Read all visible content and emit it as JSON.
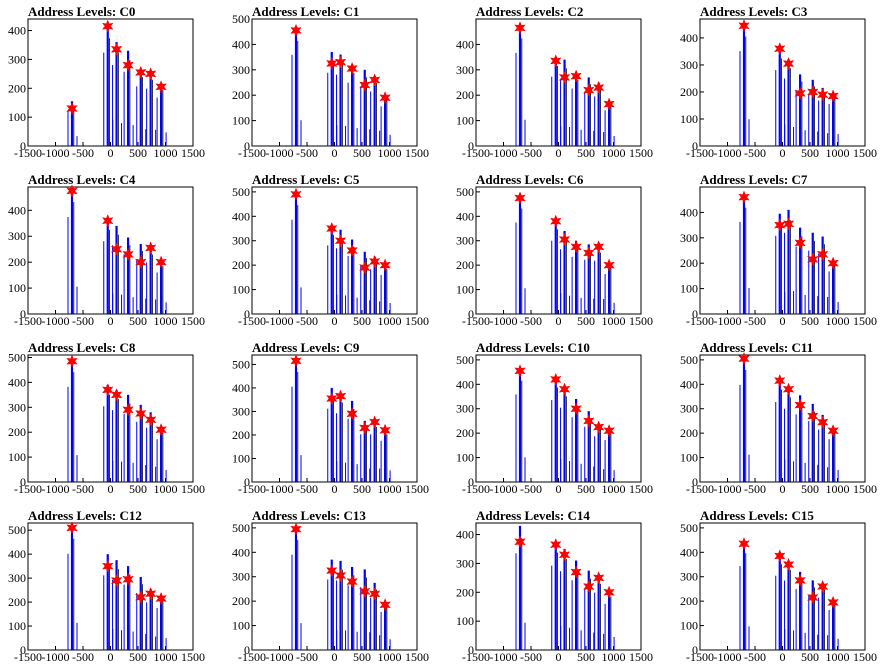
{
  "figure": {
    "x_ticks": [
      -1500,
      -1000,
      -500,
      0,
      500,
      1000,
      1500
    ],
    "x_range": [
      -1500,
      1500
    ],
    "colors": {
      "hist": "#0000ff",
      "peak": "#ff0000",
      "axis": "#000000"
    },
    "marker": "star"
  },
  "chart_data": [
    {
      "type": "bar",
      "title": "Address Levels: C0",
      "ylim": [
        0,
        440
      ],
      "y_ticks": [
        0,
        100,
        200,
        300,
        400
      ],
      "peaks": [
        [
          -700,
          130
        ],
        [
          -50,
          415
        ],
        [
          110,
          335
        ],
        [
          320,
          280
        ],
        [
          550,
          255
        ],
        [
          730,
          250
        ],
        [
          920,
          205
        ]
      ],
      "bars": [
        [
          -700,
          155
        ],
        [
          -50,
          415
        ],
        [
          110,
          360
        ],
        [
          320,
          330
        ],
        [
          550,
          265
        ],
        [
          730,
          255
        ],
        [
          920,
          215
        ]
      ]
    },
    {
      "type": "bar",
      "title": "Address Levels: C1",
      "ylim": [
        0,
        500
      ],
      "y_ticks": [
        0,
        100,
        200,
        300,
        400,
        500
      ],
      "peaks": [
        [
          -700,
          455
        ],
        [
          -50,
          325
        ],
        [
          110,
          330
        ],
        [
          320,
          305
        ],
        [
          550,
          240
        ],
        [
          730,
          260
        ],
        [
          920,
          190
        ]
      ],
      "bars": [
        [
          -700,
          460
        ],
        [
          -50,
          370
        ],
        [
          110,
          360
        ],
        [
          320,
          320
        ],
        [
          550,
          300
        ],
        [
          730,
          275
        ],
        [
          920,
          200
        ]
      ]
    },
    {
      "type": "bar",
      "title": "Address Levels: C2",
      "ylim": [
        0,
        500
      ],
      "y_ticks": [
        0,
        100,
        200,
        300,
        400
      ],
      "peaks": [
        [
          -700,
          465
        ],
        [
          -50,
          335
        ],
        [
          110,
          270
        ],
        [
          320,
          275
        ],
        [
          550,
          220
        ],
        [
          730,
          230
        ],
        [
          920,
          165
        ]
      ],
      "bars": [
        [
          -700,
          470
        ],
        [
          -50,
          350
        ],
        [
          110,
          340
        ],
        [
          320,
          290
        ],
        [
          550,
          270
        ],
        [
          730,
          250
        ],
        [
          920,
          180
        ]
      ]
    },
    {
      "type": "bar",
      "title": "Address Levels: C3",
      "ylim": [
        0,
        470
      ],
      "y_ticks": [
        0,
        100,
        200,
        300,
        400
      ],
      "peaks": [
        [
          -700,
          445
        ],
        [
          -50,
          360
        ],
        [
          110,
          305
        ],
        [
          320,
          195
        ],
        [
          550,
          200
        ],
        [
          730,
          190
        ],
        [
          920,
          185
        ]
      ],
      "bars": [
        [
          -700,
          450
        ],
        [
          -50,
          360
        ],
        [
          110,
          320
        ],
        [
          320,
          265
        ],
        [
          550,
          245
        ],
        [
          730,
          215
        ],
        [
          920,
          200
        ]
      ]
    },
    {
      "type": "bar",
      "title": "Address Levels: C4",
      "ylim": [
        0,
        490
      ],
      "y_ticks": [
        0,
        100,
        200,
        300,
        400
      ],
      "peaks": [
        [
          -700,
          475
        ],
        [
          -50,
          360
        ],
        [
          110,
          250
        ],
        [
          320,
          230
        ],
        [
          550,
          200
        ],
        [
          730,
          255
        ],
        [
          920,
          200
        ]
      ],
      "bars": [
        [
          -700,
          480
        ],
        [
          -50,
          360
        ],
        [
          110,
          340
        ],
        [
          320,
          295
        ],
        [
          550,
          270
        ],
        [
          730,
          255
        ],
        [
          920,
          205
        ]
      ]
    },
    {
      "type": "bar",
      "title": "Address Levels: C5",
      "ylim": [
        0,
        520
      ],
      "y_ticks": [
        0,
        100,
        200,
        300,
        400,
        500
      ],
      "peaks": [
        [
          -700,
          490
        ],
        [
          -50,
          350
        ],
        [
          110,
          300
        ],
        [
          320,
          260
        ],
        [
          550,
          190
        ],
        [
          730,
          215
        ],
        [
          920,
          200
        ]
      ],
      "bars": [
        [
          -700,
          495
        ],
        [
          -50,
          360
        ],
        [
          110,
          345
        ],
        [
          320,
          305
        ],
        [
          550,
          255
        ],
        [
          730,
          235
        ],
        [
          920,
          205
        ]
      ]
    },
    {
      "type": "bar",
      "title": "Address Levels: C6",
      "ylim": [
        0,
        520
      ],
      "y_ticks": [
        0,
        100,
        200,
        300,
        400,
        500
      ],
      "peaks": [
        [
          -700,
          475
        ],
        [
          -50,
          380
        ],
        [
          110,
          305
        ],
        [
          320,
          275
        ],
        [
          550,
          250
        ],
        [
          730,
          275
        ],
        [
          920,
          200
        ]
      ],
      "bars": [
        [
          -700,
          480
        ],
        [
          -50,
          385
        ],
        [
          110,
          340
        ],
        [
          320,
          300
        ],
        [
          550,
          285
        ],
        [
          730,
          280
        ],
        [
          920,
          210
        ]
      ]
    },
    {
      "type": "bar",
      "title": "Address Levels: C7",
      "ylim": [
        0,
        500
      ],
      "y_ticks": [
        0,
        100,
        200,
        300,
        400
      ],
      "peaks": [
        [
          -700,
          460
        ],
        [
          -50,
          350
        ],
        [
          110,
          355
        ],
        [
          320,
          280
        ],
        [
          550,
          215
        ],
        [
          730,
          235
        ],
        [
          920,
          200
        ]
      ],
      "bars": [
        [
          -700,
          465
        ],
        [
          -50,
          395
        ],
        [
          110,
          410
        ],
        [
          320,
          340
        ],
        [
          550,
          320
        ],
        [
          730,
          305
        ],
        [
          920,
          215
        ]
      ]
    },
    {
      "type": "bar",
      "title": "Address Levels: C8",
      "ylim": [
        0,
        510
      ],
      "y_ticks": [
        0,
        100,
        200,
        300,
        400,
        500
      ],
      "peaks": [
        [
          -700,
          485
        ],
        [
          -50,
          370
        ],
        [
          110,
          350
        ],
        [
          320,
          290
        ],
        [
          550,
          275
        ],
        [
          730,
          250
        ],
        [
          920,
          210
        ]
      ],
      "bars": [
        [
          -700,
          490
        ],
        [
          -50,
          390
        ],
        [
          110,
          370
        ],
        [
          320,
          350
        ],
        [
          550,
          310
        ],
        [
          730,
          280
        ],
        [
          920,
          220
        ]
      ]
    },
    {
      "type": "bar",
      "title": "Address Levels: C9",
      "ylim": [
        0,
        540
      ],
      "y_ticks": [
        0,
        100,
        200,
        300,
        400,
        500
      ],
      "peaks": [
        [
          -700,
          515
        ],
        [
          -50,
          355
        ],
        [
          110,
          365
        ],
        [
          320,
          290
        ],
        [
          550,
          230
        ],
        [
          730,
          255
        ],
        [
          920,
          220
        ]
      ],
      "bars": [
        [
          -700,
          520
        ],
        [
          -50,
          400
        ],
        [
          110,
          375
        ],
        [
          320,
          345
        ],
        [
          550,
          260
        ],
        [
          730,
          260
        ],
        [
          920,
          225
        ]
      ]
    },
    {
      "type": "bar",
      "title": "Address Levels: C10",
      "ylim": [
        0,
        520
      ],
      "y_ticks": [
        0,
        100,
        200,
        300,
        400,
        500
      ],
      "peaks": [
        [
          -700,
          455
        ],
        [
          -50,
          420
        ],
        [
          110,
          380
        ],
        [
          320,
          300
        ],
        [
          550,
          250
        ],
        [
          730,
          225
        ],
        [
          920,
          210
        ]
      ],
      "bars": [
        [
          -700,
          460
        ],
        [
          -50,
          430
        ],
        [
          110,
          390
        ],
        [
          320,
          340
        ],
        [
          550,
          290
        ],
        [
          730,
          240
        ],
        [
          920,
          220
        ]
      ]
    },
    {
      "type": "bar",
      "title": "Address Levels: C11",
      "ylim": [
        0,
        520
      ],
      "y_ticks": [
        0,
        100,
        200,
        300,
        400,
        500
      ],
      "peaks": [
        [
          -700,
          505
        ],
        [
          -50,
          415
        ],
        [
          110,
          380
        ],
        [
          320,
          315
        ],
        [
          550,
          270
        ],
        [
          730,
          245
        ],
        [
          920,
          210
        ]
      ],
      "bars": [
        [
          -700,
          510
        ],
        [
          -50,
          420
        ],
        [
          110,
          385
        ],
        [
          320,
          355
        ],
        [
          550,
          320
        ],
        [
          730,
          275
        ],
        [
          920,
          225
        ]
      ]
    },
    {
      "type": "bar",
      "title": "Address Levels: C12",
      "ylim": [
        0,
        530
      ],
      "y_ticks": [
        0,
        100,
        200,
        300,
        400,
        500
      ],
      "peaks": [
        [
          -700,
          510
        ],
        [
          -50,
          350
        ],
        [
          110,
          290
        ],
        [
          320,
          295
        ],
        [
          550,
          220
        ],
        [
          730,
          235
        ],
        [
          920,
          215
        ]
      ],
      "bars": [
        [
          -700,
          515
        ],
        [
          -50,
          400
        ],
        [
          110,
          375
        ],
        [
          320,
          350
        ],
        [
          550,
          305
        ],
        [
          730,
          255
        ],
        [
          920,
          225
        ]
      ]
    },
    {
      "type": "bar",
      "title": "Address Levels: C13",
      "ylim": [
        0,
        520
      ],
      "y_ticks": [
        0,
        100,
        200,
        300,
        400,
        500
      ],
      "peaks": [
        [
          -700,
          495
        ],
        [
          -50,
          325
        ],
        [
          110,
          305
        ],
        [
          320,
          280
        ],
        [
          550,
          240
        ],
        [
          730,
          230
        ],
        [
          920,
          185
        ]
      ],
      "bars": [
        [
          -700,
          500
        ],
        [
          -50,
          370
        ],
        [
          110,
          365
        ],
        [
          320,
          340
        ],
        [
          550,
          330
        ],
        [
          730,
          275
        ],
        [
          920,
          200
        ]
      ]
    },
    {
      "type": "bar",
      "title": "Address Levels: C14",
      "ylim": [
        0,
        440
      ],
      "y_ticks": [
        0,
        100,
        200,
        300,
        400
      ],
      "peaks": [
        [
          -700,
          375
        ],
        [
          -50,
          365
        ],
        [
          110,
          330
        ],
        [
          320,
          270
        ],
        [
          550,
          220
        ],
        [
          730,
          250
        ],
        [
          920,
          200
        ]
      ],
      "bars": [
        [
          -700,
          430
        ],
        [
          -50,
          375
        ],
        [
          110,
          350
        ],
        [
          320,
          310
        ],
        [
          550,
          275
        ],
        [
          730,
          255
        ],
        [
          920,
          205
        ]
      ]
    },
    {
      "type": "bar",
      "title": "Address Levels: C15",
      "ylim": [
        0,
        520
      ],
      "y_ticks": [
        0,
        100,
        200,
        300,
        400,
        500
      ],
      "peaks": [
        [
          -700,
          435
        ],
        [
          -50,
          385
        ],
        [
          110,
          350
        ],
        [
          320,
          285
        ],
        [
          550,
          215
        ],
        [
          730,
          260
        ],
        [
          920,
          195
        ]
      ],
      "bars": [
        [
          -700,
          440
        ],
        [
          -50,
          390
        ],
        [
          110,
          365
        ],
        [
          320,
          320
        ],
        [
          550,
          285
        ],
        [
          730,
          275
        ],
        [
          920,
          210
        ]
      ]
    }
  ]
}
